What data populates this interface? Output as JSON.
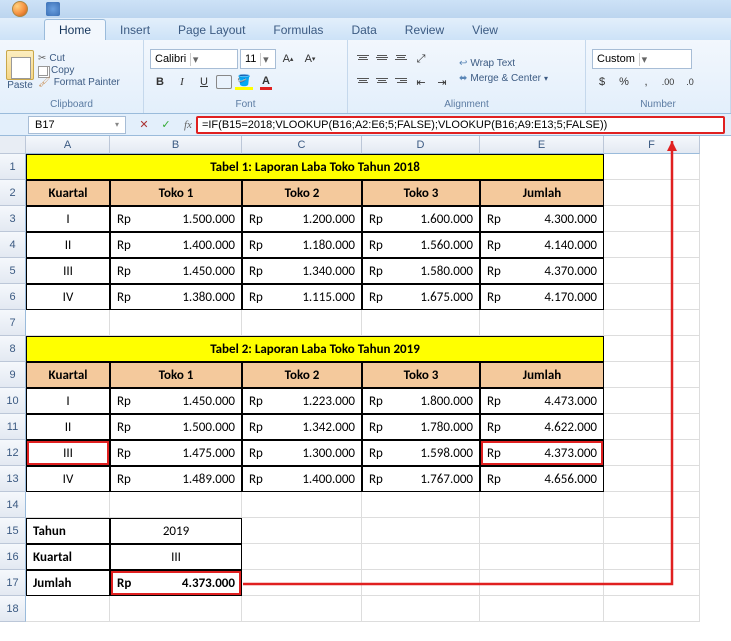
{
  "tabs": [
    "Home",
    "Insert",
    "Page Layout",
    "Formulas",
    "Data",
    "Review",
    "View"
  ],
  "clipboard": {
    "paste": "Paste",
    "cut": "Cut",
    "copy": "Copy",
    "format": "Format Painter",
    "label": "Clipboard"
  },
  "font": {
    "name": "Calibri",
    "size": "11",
    "label": "Font"
  },
  "alignment": {
    "wrap": "Wrap Text",
    "merge": "Merge & Center",
    "label": "Alignment"
  },
  "number": {
    "format": "Custom",
    "label": "Number"
  },
  "namebox": "B17",
  "formula": "=IF(B15=2018;VLOOKUP(B16;A2:E6;5;FALSE);VLOOKUP(B16;A9:E13;5;FALSE))",
  "cols": [
    "A",
    "B",
    "C",
    "D",
    "E",
    "F"
  ],
  "table1": {
    "title": "Tabel 1: Laporan Laba Toko Tahun 2018",
    "headers": [
      "Kuartal",
      "Toko 1",
      "Toko 2",
      "Toko 3",
      "Jumlah"
    ],
    "rows": [
      {
        "k": "I",
        "v": [
          "1.500.000",
          "1.200.000",
          "1.600.000",
          "4.300.000"
        ]
      },
      {
        "k": "II",
        "v": [
          "1.400.000",
          "1.180.000",
          "1.560.000",
          "4.140.000"
        ]
      },
      {
        "k": "III",
        "v": [
          "1.450.000",
          "1.340.000",
          "1.580.000",
          "4.370.000"
        ]
      },
      {
        "k": "IV",
        "v": [
          "1.380.000",
          "1.115.000",
          "1.675.000",
          "4.170.000"
        ]
      }
    ]
  },
  "table2": {
    "title": "Tabel 2: Laporan Laba Toko Tahun 2019",
    "headers": [
      "Kuartal",
      "Toko 1",
      "Toko 2",
      "Toko 3",
      "Jumlah"
    ],
    "rows": [
      {
        "k": "I",
        "v": [
          "1.450.000",
          "1.223.000",
          "1.800.000",
          "4.473.000"
        ]
      },
      {
        "k": "II",
        "v": [
          "1.500.000",
          "1.342.000",
          "1.780.000",
          "4.622.000"
        ]
      },
      {
        "k": "III",
        "v": [
          "1.475.000",
          "1.300.000",
          "1.598.000",
          "4.373.000"
        ]
      },
      {
        "k": "IV",
        "v": [
          "1.489.000",
          "1.400.000",
          "1.767.000",
          "4.656.000"
        ]
      }
    ]
  },
  "lookup": {
    "tahun_l": "Tahun",
    "tahun_v": "2019",
    "kuartal_l": "Kuartal",
    "kuartal_v": "III",
    "jumlah_l": "Jumlah",
    "jumlah_rp": "Rp",
    "jumlah_v": "4.373.000"
  },
  "rp": "Rp"
}
